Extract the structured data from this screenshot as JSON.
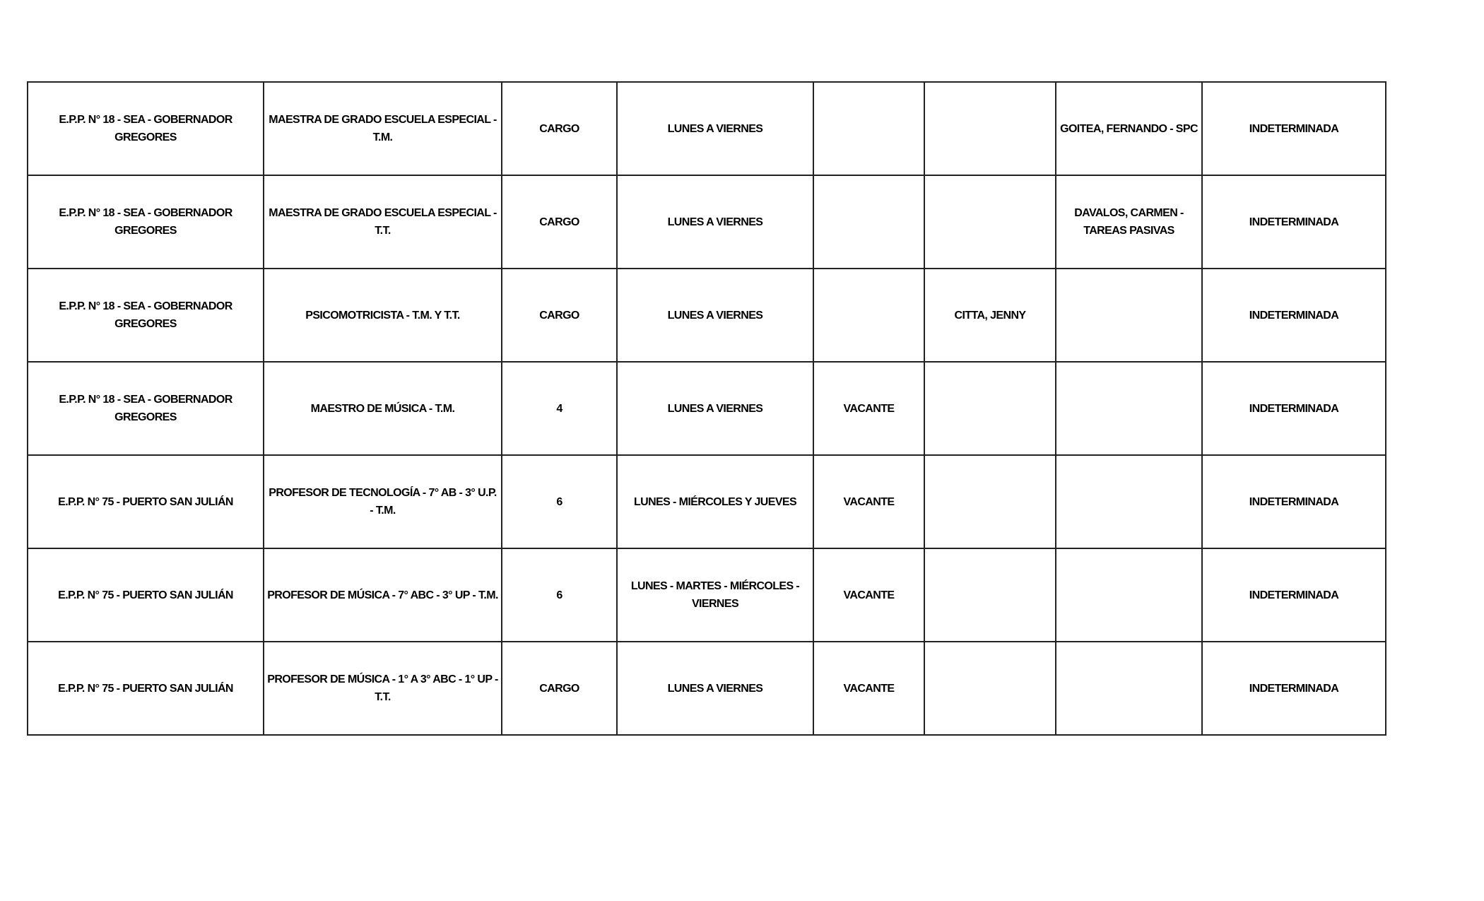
{
  "table": {
    "rows": [
      [
        "E.P.P. N° 18 - SEA - GOBERNADOR GREGORES",
        "MAESTRA DE GRADO ESCUELA ESPECIAL - T.M.",
        "CARGO",
        "LUNES A VIERNES",
        "",
        "",
        "GOITEA, FERNANDO - SPC",
        "INDETERMINADA"
      ],
      [
        "E.P.P. N° 18 - SEA - GOBERNADOR GREGORES",
        "MAESTRA DE GRADO ESCUELA ESPECIAL - T.T.",
        "CARGO",
        "LUNES A VIERNES",
        "",
        "",
        "DAVALOS, CARMEN - TAREAS PASIVAS",
        "INDETERMINADA"
      ],
      [
        "E.P.P. N° 18 - SEA - GOBERNADOR GREGORES",
        "PSICOMOTRICISTA - T.M. Y T.T.",
        "CARGO",
        "LUNES A VIERNES",
        "",
        "CITTA, JENNY",
        "",
        "INDETERMINADA"
      ],
      [
        "E.P.P. N° 18 - SEA - GOBERNADOR GREGORES",
        "MAESTRO DE MÚSICA - T.M.",
        "4",
        "LUNES A VIERNES",
        "VACANTE",
        "",
        "",
        "INDETERMINADA"
      ],
      [
        "E.P.P. N° 75 - PUERTO SAN JULIÁN",
        "PROFESOR DE TECNOLOGÍA - 7° AB - 3° U.P. - T.M.",
        "6",
        "LUNES - MIÉRCOLES Y JUEVES",
        "VACANTE",
        "",
        "",
        "INDETERMINADA"
      ],
      [
        "E.P.P. N° 75 - PUERTO SAN JULIÁN",
        "PROFESOR DE MÚSICA - 7° ABC - 3° UP - T.M.",
        "6",
        "LUNES - MARTES - MIÉRCOLES - VIERNES",
        "VACANTE",
        "",
        "",
        "INDETERMINADA"
      ],
      [
        "E.P.P. N° 75 - PUERTO SAN JULIÁN",
        "PROFESOR DE MÚSICA - 1° A 3° ABC - 1° UP - T.T.",
        "CARGO",
        "LUNES A VIERNES",
        "VACANTE",
        "",
        "",
        "INDETERMINADA"
      ]
    ]
  }
}
